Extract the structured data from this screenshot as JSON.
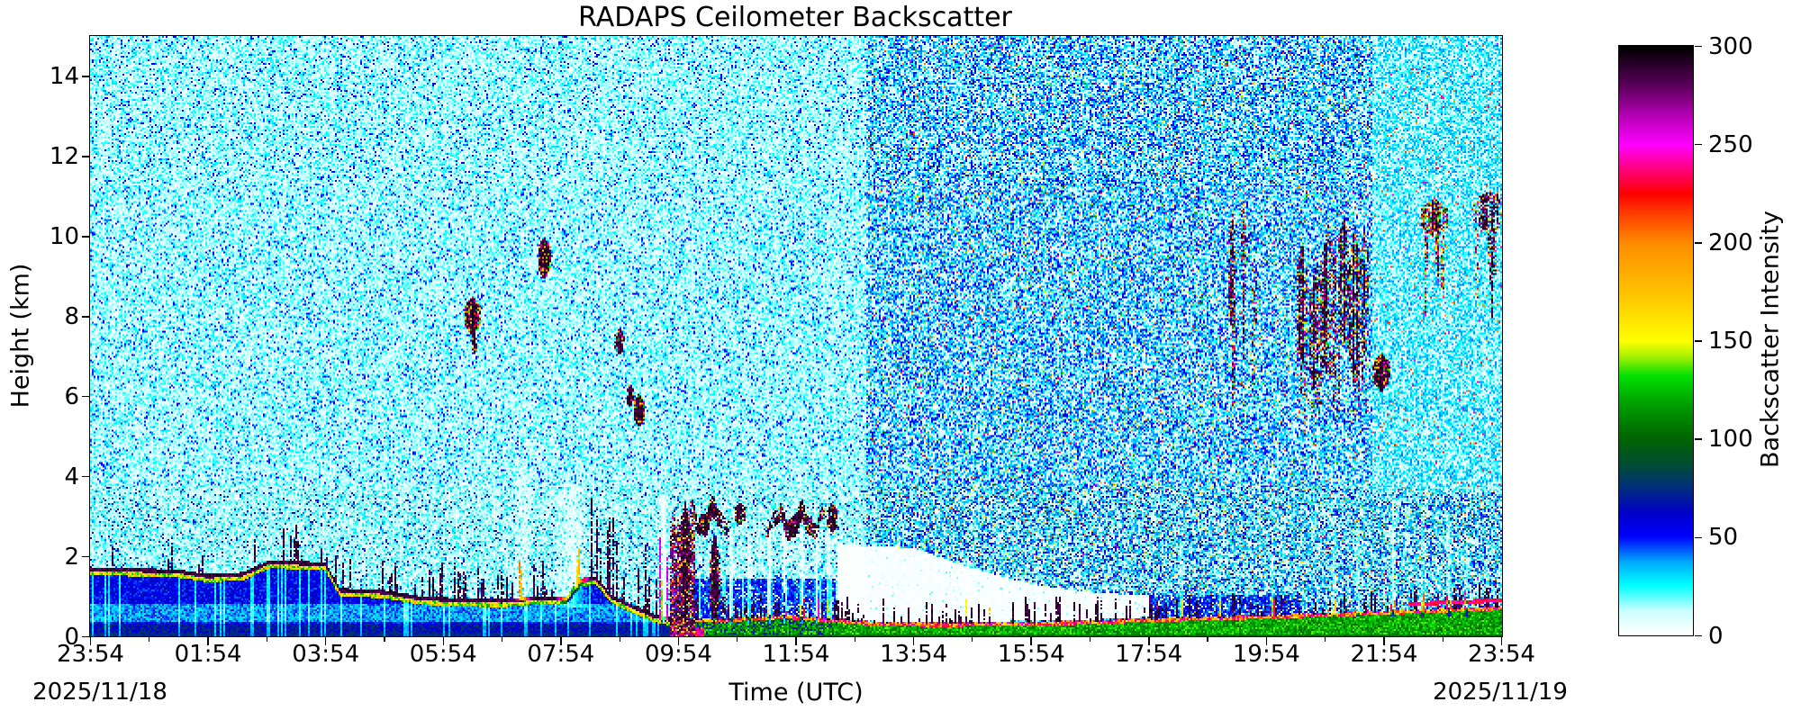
{
  "title": "RADAPS Ceilometer Backscatter",
  "axes": {
    "xlabel": "Time (UTC)",
    "ylabel": "Height (km)",
    "x_tick_labels": [
      "23:54",
      "01:54",
      "03:54",
      "05:54",
      "07:54",
      "09:54",
      "11:54",
      "13:54",
      "15:54",
      "17:54",
      "19:54",
      "21:54",
      "23:54"
    ],
    "x_tick_hours": [
      0,
      2,
      4,
      6,
      8,
      10,
      12,
      14,
      16,
      18,
      20,
      22,
      24
    ],
    "x_minor_hours": [
      1,
      3,
      5,
      7,
      9,
      11,
      13,
      15,
      17,
      19,
      21,
      23
    ],
    "x_range_hours": [
      0,
      24
    ],
    "y_ticks": [
      0,
      2,
      4,
      6,
      8,
      10,
      12,
      14
    ],
    "y_range_km": [
      0,
      15
    ],
    "date_left": "2025/11/18",
    "date_right": "2025/11/19"
  },
  "colorbar": {
    "label": "Backscatter Intensity",
    "ticks": [
      0,
      50,
      100,
      150,
      200,
      250,
      300
    ],
    "range": [
      0,
      300
    ],
    "stops": [
      [
        0,
        "#ffffff"
      ],
      [
        12,
        "#ccffff"
      ],
      [
        25,
        "#00ffff"
      ],
      [
        37,
        "#00aaff"
      ],
      [
        50,
        "#0000ff"
      ],
      [
        62,
        "#0000c8"
      ],
      [
        75,
        "#002f7d"
      ],
      [
        88,
        "#00502d"
      ],
      [
        100,
        "#006400"
      ],
      [
        118,
        "#00a000"
      ],
      [
        132,
        "#00e000"
      ],
      [
        142,
        "#aaf000"
      ],
      [
        150,
        "#ffff00"
      ],
      [
        172,
        "#ffc800"
      ],
      [
        200,
        "#ff8c00"
      ],
      [
        215,
        "#ff3c00"
      ],
      [
        225,
        "#ff0000"
      ],
      [
        238,
        "#ff0082"
      ],
      [
        250,
        "#ff00ff"
      ],
      [
        265,
        "#b400b4"
      ],
      [
        280,
        "#5c005c"
      ],
      [
        300,
        "#000000"
      ]
    ]
  },
  "chart_data": {
    "type": "heatmap",
    "title": "RADAPS Ceilometer Backscatter",
    "xlabel": "Time (UTC)",
    "ylabel": "Height (km)",
    "x_start": "2025/11/18 23:54 UTC",
    "x_end": "2025/11/19 23:54 UTC",
    "x_span_hours": 24,
    "ylim_km": [
      0,
      15
    ],
    "value_range": [
      0,
      300
    ],
    "colorbar_label": "Backscatter Intensity",
    "noise_seed": 20251118,
    "noise_regime_change_hour": 13.2,
    "light_noise_after_hour": 21.8,
    "boundary_layer_top_km": [
      [
        0,
        1.68
      ],
      [
        1.5,
        1.62
      ],
      [
        2.0,
        1.5
      ],
      [
        2.6,
        1.55
      ],
      [
        3.05,
        1.85
      ],
      [
        4.0,
        1.8
      ],
      [
        4.25,
        1.15
      ],
      [
        5.0,
        1.1
      ],
      [
        5.6,
        0.95
      ],
      [
        6.3,
        0.9
      ],
      [
        7.0,
        0.88
      ],
      [
        7.6,
        0.95
      ],
      [
        8.1,
        0.95
      ],
      [
        8.35,
        1.4
      ],
      [
        8.6,
        1.45
      ],
      [
        8.85,
        1.0
      ],
      [
        9.2,
        0.75
      ],
      [
        9.6,
        0.5
      ],
      [
        9.85,
        0.42
      ]
    ],
    "surface_layer_top_km": [
      [
        9.85,
        0.38
      ],
      [
        10.8,
        0.42
      ],
      [
        11.8,
        0.5
      ],
      [
        12.6,
        0.42
      ],
      [
        13.4,
        0.32
      ],
      [
        14.5,
        0.3
      ],
      [
        16.0,
        0.33
      ],
      [
        17.0,
        0.36
      ],
      [
        18.0,
        0.42
      ],
      [
        19.0,
        0.46
      ],
      [
        20.0,
        0.5
      ],
      [
        21.0,
        0.55
      ],
      [
        22.0,
        0.6
      ],
      [
        23.0,
        0.66
      ],
      [
        24.0,
        0.72
      ]
    ],
    "attenuation_white_zone": {
      "t0": 12.7,
      "t1": 18.1,
      "top_km": [
        [
          12.7,
          2.3
        ],
        [
          14.0,
          2.2
        ],
        [
          15.0,
          1.7
        ],
        [
          16.0,
          1.3
        ],
        [
          17.0,
          1.1
        ],
        [
          18.1,
          1.0
        ]
      ]
    },
    "precip_column": {
      "t0": 9.87,
      "t1": 10.28,
      "top_km": 3.3
    },
    "red_base_end_hour": 10.45,
    "elevated_red_line": {
      "t0": 22.4,
      "offset_km": 0.18
    },
    "white_streaks": [
      [
        9.75,
        0.07,
        0.35,
        3.5,
        0.92
      ],
      [
        8.2,
        0.3,
        0.7,
        3.8,
        0.6
      ],
      [
        7.35,
        0.15,
        0.9,
        4.2,
        0.45
      ],
      [
        10.9,
        0.05,
        0.3,
        2.6,
        0.85
      ],
      [
        11.2,
        0.04,
        0.3,
        2.6,
        0.8
      ],
      [
        11.55,
        0.05,
        0.3,
        2.6,
        0.85
      ],
      [
        11.8,
        0.04,
        0.3,
        2.6,
        0.8
      ],
      [
        12.1,
        0.05,
        0.3,
        2.7,
        0.85
      ],
      [
        12.35,
        0.04,
        0.3,
        2.7,
        0.8
      ],
      [
        12.55,
        0.05,
        0.45,
        2.7,
        0.7
      ],
      [
        14.9,
        0.05,
        0.5,
        2.2,
        0.55
      ],
      [
        15.3,
        0.04,
        0.5,
        2.0,
        0.5
      ],
      [
        18.55,
        0.05,
        0.5,
        2.4,
        0.65
      ],
      [
        19.2,
        0.04,
        0.5,
        2.2,
        0.55
      ],
      [
        20.1,
        0.04,
        0.5,
        2.0,
        0.55
      ],
      [
        21.15,
        0.05,
        0.5,
        3.0,
        0.65
      ],
      [
        21.55,
        0.04,
        0.5,
        2.8,
        0.6
      ],
      [
        22.15,
        0.05,
        0.5,
        3.2,
        0.65
      ],
      [
        22.65,
        0.04,
        0.5,
        3.0,
        0.55
      ],
      [
        23.1,
        0.05,
        0.5,
        3.0,
        0.6
      ],
      [
        23.4,
        0.04,
        0.5,
        2.5,
        0.55
      ]
    ],
    "clouds": [
      {
        "t": 6.5,
        "h": 8.0,
        "w": 0.13,
        "d": 0.5,
        "fl": "f"
      },
      {
        "t": 6.53,
        "h": 7.35,
        "w": 0.05,
        "d": 0.3,
        "fl": ""
      },
      {
        "t": 7.72,
        "h": 9.45,
        "w": 0.11,
        "d": 0.55,
        "fl": "f"
      },
      {
        "t": 9.0,
        "h": 7.35,
        "w": 0.08,
        "d": 0.35,
        "fl": ""
      },
      {
        "t": 9.18,
        "h": 6.0,
        "w": 0.06,
        "d": 0.3,
        "fl": ""
      },
      {
        "t": 9.33,
        "h": 5.65,
        "w": 0.1,
        "d": 0.42,
        "fl": "f"
      },
      {
        "t": 10.12,
        "h": 1.9,
        "w": 0.1,
        "d": 1.5,
        "fl": ""
      },
      {
        "t": 10.5,
        "h": 2.95,
        "w": 0.38,
        "d": 0.3,
        "fl": "v"
      },
      {
        "t": 10.62,
        "h": 1.4,
        "w": 0.08,
        "d": 1.2,
        "fl": ""
      },
      {
        "t": 11.05,
        "h": 3.05,
        "w": 0.1,
        "d": 0.3,
        "fl": ""
      },
      {
        "t": 12.0,
        "h": 2.85,
        "w": 0.52,
        "d": 0.28,
        "fl": "v"
      },
      {
        "t": 12.62,
        "h": 2.95,
        "w": 0.09,
        "d": 0.4,
        "fl": ""
      },
      {
        "t": 19.42,
        "h": 9.0,
        "w": 0.06,
        "d": 1.6,
        "fl": "s"
      },
      {
        "t": 19.6,
        "h": 9.9,
        "w": 0.05,
        "d": 1.0,
        "fl": "s"
      },
      {
        "t": 19.78,
        "h": 8.4,
        "w": 0.05,
        "d": 1.2,
        "fl": "s"
      },
      {
        "t": 20.6,
        "h": 8.3,
        "w": 0.1,
        "d": 1.6,
        "fl": "s"
      },
      {
        "t": 20.85,
        "h": 7.6,
        "w": 0.12,
        "d": 1.8,
        "fl": "s"
      },
      {
        "t": 21.05,
        "h": 8.3,
        "w": 0.14,
        "d": 2.0,
        "fl": "s"
      },
      {
        "t": 21.3,
        "h": 8.9,
        "w": 0.1,
        "d": 1.7,
        "fl": "s"
      },
      {
        "t": 21.5,
        "h": 8.2,
        "w": 0.12,
        "d": 2.1,
        "fl": "s"
      },
      {
        "t": 21.67,
        "h": 8.9,
        "w": 0.07,
        "d": 1.3,
        "fl": "s"
      },
      {
        "t": 21.95,
        "h": 6.6,
        "w": 0.14,
        "d": 0.5,
        "fl": "f"
      },
      {
        "t": 22.85,
        "h": 10.45,
        "w": 0.22,
        "d": 0.5,
        "fl": "sf"
      },
      {
        "t": 23.8,
        "h": 10.6,
        "w": 0.3,
        "d": 0.55,
        "fl": "s"
      }
    ],
    "notable_features": [
      "Speckled clear-air noise everywhere; noise denser and more colorful after ~13:00 UTC, lighter again after ~21:45 above 4 km",
      "Boundary-layer aerosol 0-1.9 km with black attenuated top and yellow-green fringe from 23:54 to ~09:45",
      "Shallow green/yellow/red surface layer 0-0.7 km from ~10:00 to 24:00, deepening toward the right edge with a red line near 0.9 km after ~22:30",
      "Strong precipitation/attenuation column near 10:00 reaching ~3.3 km with red near the surface",
      "Mid-level black cloud layer near 2.8-3 km between ~10:15 and ~12:45",
      "Isolated clouds: ~06:25 at 8 km, ~07:40 at 9.5 km, ~08:55 at 7.4 km, ~09:10 at 5.6-6 km",
      "High cloud streaks 6.5-10.5 km between ~19:20 and ~22:00, patch at ~22:45 (10.4 km) and streak after ~23:30 (10.6 km)",
      "White attenuation gap below ~2 km between ~12:45 and ~18:00 pierced by black surface spikes; scattered white vertical data-gap streaks"
    ]
  }
}
